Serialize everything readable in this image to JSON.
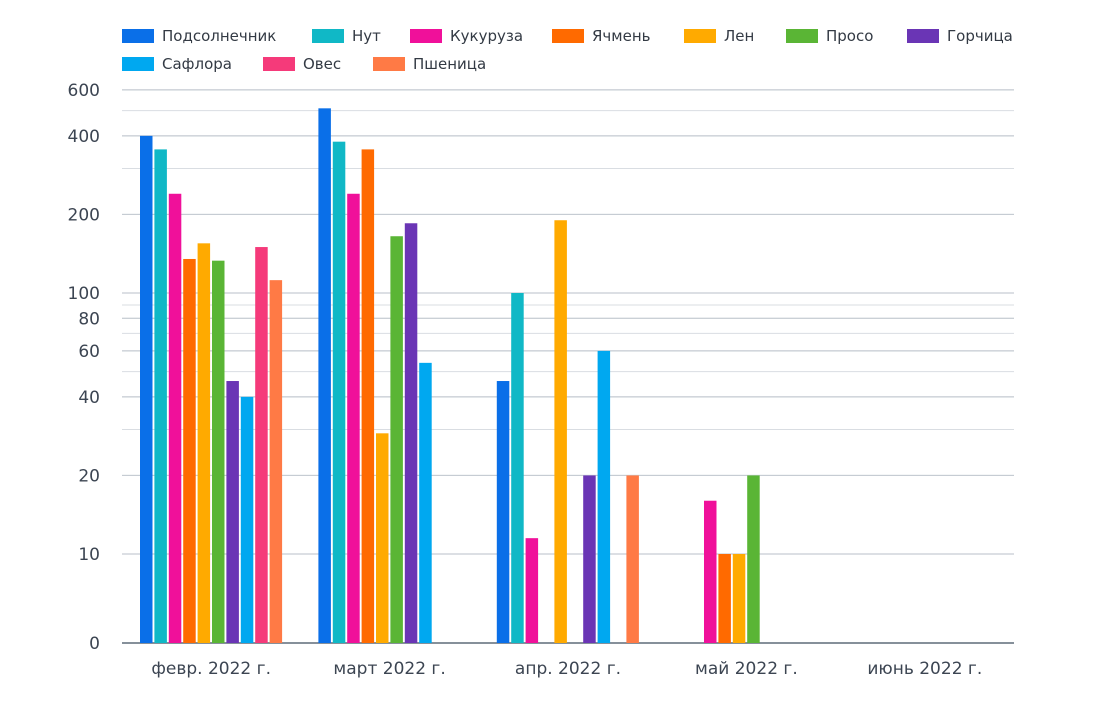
{
  "chart_data": {
    "type": "bar",
    "scale": "log",
    "categories": [
      "февр. 2022 г.",
      "март 2022 г.",
      "апр. 2022 г.",
      "май 2022 г.",
      "июнь 2022 г."
    ],
    "y_ticks": [
      "600",
      "400",
      "200",
      "100",
      "80",
      "60",
      "40",
      "20",
      "10",
      "0"
    ],
    "grid": true,
    "legend_position": "top",
    "series": [
      {
        "name": "Подсолнечник",
        "color": "#0a6fe8",
        "values": [
          400,
          510,
          46,
          null,
          null
        ]
      },
      {
        "name": "Нут",
        "color": "#10b8c6",
        "values": [
          355,
          380,
          100,
          null,
          null
        ]
      },
      {
        "name": "Кукуруза",
        "color": "#f0109a",
        "values": [
          240,
          240,
          11.5,
          16,
          null
        ]
      },
      {
        "name": "Ячмень",
        "color": "#ff6a00",
        "values": [
          135,
          355,
          null,
          10,
          null
        ]
      },
      {
        "name": "Лен",
        "color": "#ffaa00",
        "values": [
          155,
          29,
          190,
          10,
          null
        ]
      },
      {
        "name": "Просо",
        "color": "#5ab535",
        "values": [
          133,
          165,
          null,
          20,
          null
        ]
      },
      {
        "name": "Горчица",
        "color": "#6a35b5",
        "values": [
          46,
          185,
          20,
          null,
          null
        ]
      },
      {
        "name": "Сафлора",
        "color": "#00a8f0",
        "values": [
          40,
          54,
          60,
          null,
          null
        ]
      },
      {
        "name": "Овес",
        "color": "#f53a7a",
        "values": [
          150,
          null,
          null,
          null,
          null
        ]
      },
      {
        "name": "Пшеница",
        "color": "#ff7a45",
        "values": [
          112,
          null,
          20,
          null,
          null
        ]
      }
    ]
  }
}
